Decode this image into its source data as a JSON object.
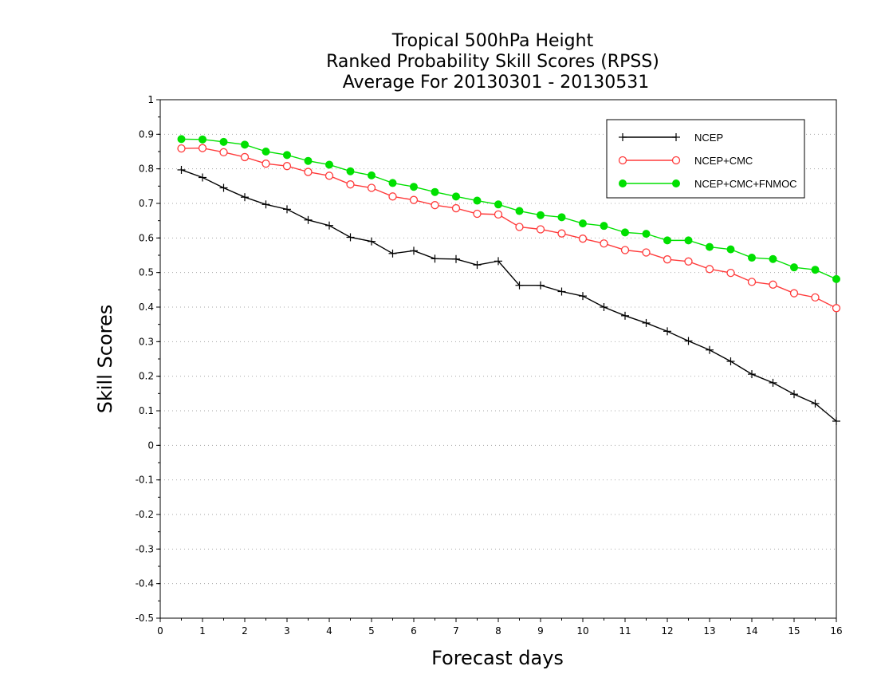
{
  "chart_data": {
    "type": "line",
    "title_lines": [
      "Tropical 500hPa Height",
      "Ranked Probability Skill Scores (RPSS)",
      "Average For 20130301 - 20130531"
    ],
    "xlabel": "Forecast days",
    "ylabel": "Skill Scores",
    "xlim": [
      0,
      16
    ],
    "ylim": [
      -0.5,
      1
    ],
    "xticks": [
      0,
      1,
      2,
      3,
      4,
      5,
      6,
      7,
      8,
      9,
      10,
      11,
      12,
      13,
      14,
      15,
      16
    ],
    "yticks": [
      -0.5,
      -0.4,
      -0.3,
      -0.2,
      -0.1,
      0,
      0.1,
      0.2,
      0.3,
      0.4,
      0.5,
      0.6,
      0.7,
      0.8,
      0.9,
      1
    ],
    "ytick_labels": [
      "-0.5",
      "-0.4",
      "-0.3",
      "-0.2",
      "-0.1",
      "0",
      "0.1",
      "0.2",
      "0.3",
      "0.4",
      "0.5",
      "0.6",
      "0.7",
      "0.8",
      "0.9",
      "1"
    ],
    "grid": "horizontal-dotted",
    "legend_position": "top-right",
    "x": [
      0.5,
      1,
      1.5,
      2,
      2.5,
      3,
      3.5,
      4,
      4.5,
      5,
      5.5,
      6,
      6.5,
      7,
      7.5,
      8,
      8.5,
      9,
      9.5,
      10,
      10.5,
      11,
      11.5,
      12,
      12.5,
      13,
      13.5,
      14,
      14.5,
      15,
      15.5,
      16
    ],
    "series": [
      {
        "name": "NCEP",
        "color": "#000000",
        "marker": "plus",
        "values": [
          0.797,
          0.775,
          0.745,
          0.718,
          0.697,
          0.683,
          0.652,
          0.636,
          0.602,
          0.59,
          0.555,
          0.563,
          0.54,
          0.539,
          0.522,
          0.533,
          0.463,
          0.463,
          0.445,
          0.432,
          0.4,
          0.375,
          0.354,
          0.33,
          0.302,
          0.276,
          0.243,
          0.206,
          0.181,
          0.148,
          0.121,
          0.07
        ]
      },
      {
        "name": "NCEP+CMC",
        "color": "#ff3b3b",
        "marker": "open-circle",
        "values": [
          0.859,
          0.86,
          0.848,
          0.834,
          0.815,
          0.808,
          0.791,
          0.78,
          0.755,
          0.745,
          0.72,
          0.71,
          0.695,
          0.686,
          0.67,
          0.668,
          0.632,
          0.625,
          0.613,
          0.598,
          0.584,
          0.565,
          0.558,
          0.538,
          0.532,
          0.51,
          0.499,
          0.473,
          0.465,
          0.44,
          0.428,
          0.397
        ]
      },
      {
        "name": "NCEP+CMC+FNMOC",
        "color": "#00e000",
        "marker": "filled-circle",
        "values": [
          0.886,
          0.885,
          0.878,
          0.87,
          0.85,
          0.84,
          0.823,
          0.812,
          0.793,
          0.781,
          0.759,
          0.748,
          0.733,
          0.72,
          0.708,
          0.697,
          0.678,
          0.666,
          0.66,
          0.642,
          0.635,
          0.616,
          0.612,
          0.593,
          0.593,
          0.574,
          0.567,
          0.543,
          0.539,
          0.515,
          0.508,
          0.481
        ]
      }
    ]
  }
}
